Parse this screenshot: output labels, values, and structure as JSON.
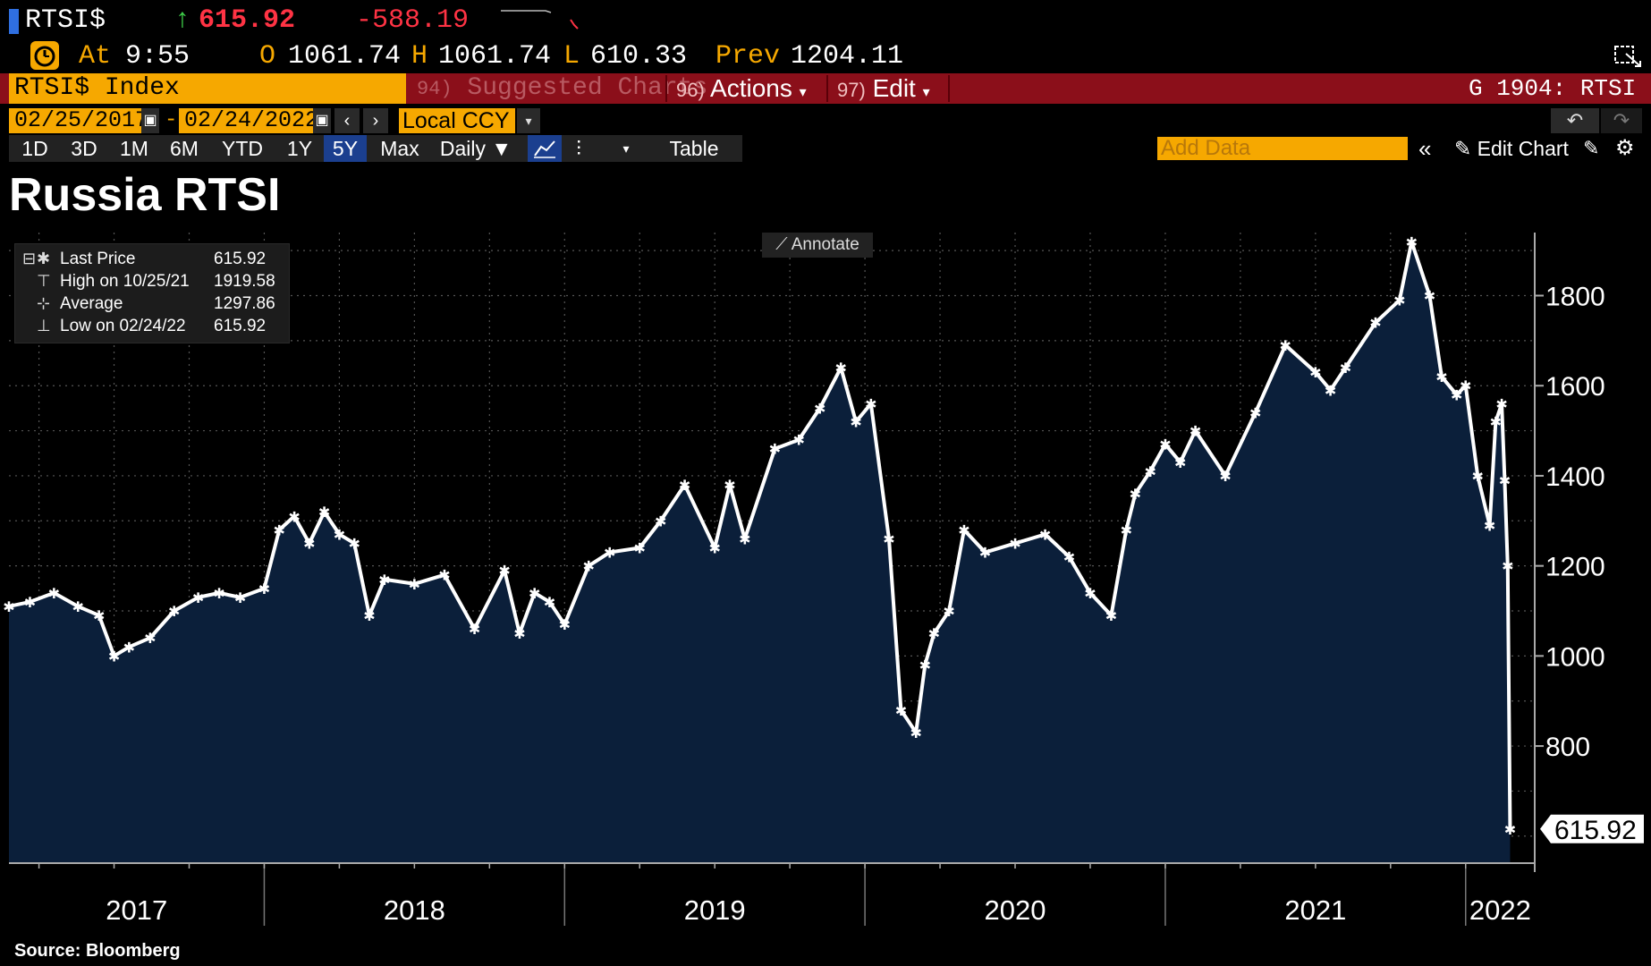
{
  "header": {
    "ticker": "RTSI$",
    "last": "615.92",
    "change": "-588.19",
    "at_label": "At",
    "time": "9:55",
    "open_label": "O",
    "open": "1061.74",
    "high_label": "H",
    "high": "1061.74",
    "low_label": "L",
    "low": "610.33",
    "prev_label": "Prev",
    "prev": "1204.11"
  },
  "menu": {
    "security": "RTSI$ Index",
    "suggested_num": "94)",
    "suggested": "Suggested Charts",
    "actions_num": "96)",
    "actions": "Actions",
    "edit_num": "97)",
    "edit": "Edit",
    "page_id": "G 1904: RTSI"
  },
  "range": {
    "start": "02/25/2017",
    "dash": "-",
    "end": "02/24/2022",
    "currency": "Local CCY"
  },
  "toolbar": {
    "periods": [
      "1D",
      "3D",
      "1M",
      "6M",
      "YTD",
      "1Y",
      "5Y",
      "Max"
    ],
    "active_period": "5Y",
    "frequency": "Daily ▼",
    "table": "Table",
    "add_data_placeholder": "Add Data",
    "edit_chart": "Edit Chart"
  },
  "colors": {
    "accent_orange": "#f6a800",
    "menu_red": "#8b0f1a",
    "down_red": "#ff3344",
    "up_green": "#3fd04a",
    "area_fill": "#0b1f3a",
    "line": "#ffffff"
  },
  "annotate_label": "Annotate",
  "source": "Source: Bloomberg",
  "chart_data": {
    "type": "area",
    "title": "Russia RTSI",
    "ylim": [
      540,
      1940
    ],
    "yticks": [
      800,
      1000,
      1200,
      1400,
      1600,
      1800
    ],
    "year_labels": [
      "2017",
      "2018",
      "2019",
      "2020",
      "2021",
      "2022"
    ],
    "last_value_label": "615.92",
    "legend": [
      {
        "label": "Last Price",
        "value": "615.92"
      },
      {
        "label": "High on 10/25/21",
        "value": "1919.58"
      },
      {
        "label": "Average",
        "value": "1297.86"
      },
      {
        "label": "Low on 02/24/22",
        "value": "615.92"
      }
    ],
    "series": [
      {
        "name": "RTSI$",
        "x": [
          2017.15,
          2017.22,
          2017.3,
          2017.38,
          2017.45,
          2017.5,
          2017.55,
          2017.62,
          2017.7,
          2017.78,
          2017.85,
          2017.92,
          2018.0,
          2018.05,
          2018.1,
          2018.15,
          2018.2,
          2018.25,
          2018.3,
          2018.35,
          2018.4,
          2018.5,
          2018.6,
          2018.7,
          2018.8,
          2018.85,
          2018.9,
          2018.95,
          2019.0,
          2019.08,
          2019.15,
          2019.25,
          2019.32,
          2019.4,
          2019.5,
          2019.55,
          2019.6,
          2019.7,
          2019.78,
          2019.85,
          2019.92,
          2019.97,
          2020.02,
          2020.08,
          2020.12,
          2020.17,
          2020.2,
          2020.23,
          2020.28,
          2020.33,
          2020.4,
          2020.5,
          2020.6,
          2020.68,
          2020.75,
          2020.82,
          2020.87,
          2020.9,
          2020.95,
          2021.0,
          2021.05,
          2021.1,
          2021.2,
          2021.3,
          2021.4,
          2021.5,
          2021.55,
          2021.6,
          2021.7,
          2021.78,
          2021.82,
          2021.88,
          2021.92,
          2021.97,
          2022.0,
          2022.04,
          2022.08,
          2022.1,
          2022.12,
          2022.13,
          2022.14,
          2022.148
        ],
        "y": [
          1110,
          1120,
          1140,
          1110,
          1090,
          1000,
          1020,
          1040,
          1100,
          1130,
          1140,
          1130,
          1150,
          1280,
          1310,
          1250,
          1320,
          1270,
          1250,
          1090,
          1170,
          1160,
          1180,
          1060,
          1190,
          1050,
          1140,
          1120,
          1070,
          1200,
          1230,
          1240,
          1300,
          1380,
          1240,
          1380,
          1260,
          1460,
          1480,
          1550,
          1640,
          1520,
          1560,
          1260,
          880,
          830,
          980,
          1050,
          1100,
          1280,
          1230,
          1250,
          1270,
          1220,
          1140,
          1090,
          1280,
          1360,
          1410,
          1470,
          1430,
          1500,
          1400,
          1540,
          1690,
          1630,
          1590,
          1640,
          1740,
          1790,
          1919.58,
          1800,
          1620,
          1580,
          1600,
          1400,
          1290,
          1520,
          1560,
          1390,
          1200,
          615.92
        ]
      }
    ]
  }
}
